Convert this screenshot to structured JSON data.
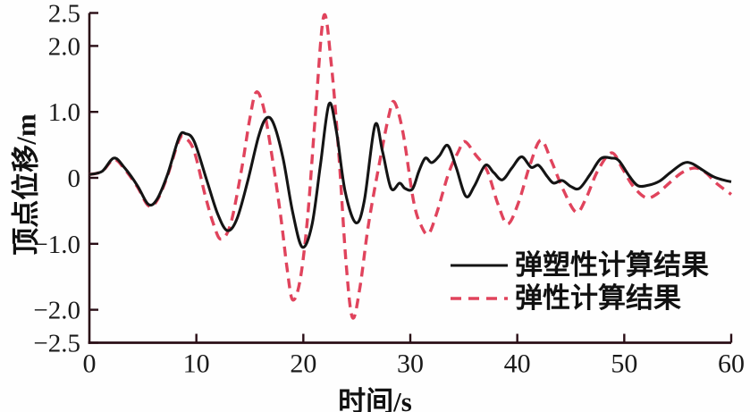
{
  "chart_data": {
    "type": "line",
    "title": "",
    "xlabel": "时间/s",
    "ylabel": "顶点位移/m",
    "xlim": [
      0,
      60
    ],
    "ylim": [
      -2.5,
      2.5
    ],
    "grid": false,
    "legend_position": "inside-bottom-right",
    "x_ticks": [
      0,
      10,
      20,
      30,
      40,
      50,
      60
    ],
    "x_tick_labels": [
      "0",
      "10",
      "20",
      "30",
      "40",
      "50",
      "60"
    ],
    "y_ticks": [
      2.5,
      2.0,
      1.0,
      0,
      -1.0,
      -2.0,
      -2.5
    ],
    "y_tick_labels": [
      "2.5",
      "2.0",
      "1.0",
      "0",
      "−1.0",
      "−2.0",
      "−2.5"
    ],
    "axis_color": "#2a0e16",
    "series": [
      {
        "name": "弹性计算结果",
        "key": "elastic",
        "style": "dashed",
        "color": "#e0435c",
        "width": 3.4,
        "points": [
          [
            0,
            0.05
          ],
          [
            1.2,
            0.1
          ],
          [
            2.3,
            0.28
          ],
          [
            3.3,
            0.13
          ],
          [
            4.5,
            -0.14
          ],
          [
            5.5,
            -0.42
          ],
          [
            6.3,
            -0.35
          ],
          [
            7.3,
            0.03
          ],
          [
            8.4,
            0.58
          ],
          [
            9.0,
            0.6
          ],
          [
            9.8,
            0.4
          ],
          [
            10.8,
            -0.25
          ],
          [
            11.6,
            -0.7
          ],
          [
            12.3,
            -0.93
          ],
          [
            13.2,
            -0.7
          ],
          [
            14.2,
            0.1
          ],
          [
            15.0,
            0.9
          ],
          [
            15.6,
            1.3
          ],
          [
            16.3,
            1.05
          ],
          [
            17.1,
            0.3
          ],
          [
            17.9,
            -0.6
          ],
          [
            18.5,
            -1.4
          ],
          [
            19.0,
            -1.85
          ],
          [
            19.7,
            -1.55
          ],
          [
            20.4,
            -0.6
          ],
          [
            21.1,
            0.9
          ],
          [
            21.9,
            2.45
          ],
          [
            22.6,
            1.75
          ],
          [
            23.3,
            0.4
          ],
          [
            24.0,
            -1.3
          ],
          [
            24.6,
            -2.12
          ],
          [
            25.3,
            -1.65
          ],
          [
            26.1,
            -0.7
          ],
          [
            27.2,
            0.3
          ],
          [
            28.0,
            0.95
          ],
          [
            28.5,
            1.15
          ],
          [
            29.3,
            0.7
          ],
          [
            30.3,
            -0.35
          ],
          [
            31.0,
            -0.72
          ],
          [
            31.7,
            -0.85
          ],
          [
            32.5,
            -0.52
          ],
          [
            33.6,
            0.08
          ],
          [
            34.5,
            0.4
          ],
          [
            35.1,
            0.55
          ],
          [
            36.1,
            0.35
          ],
          [
            37.2,
            0.1
          ],
          [
            38.2,
            -0.4
          ],
          [
            39.1,
            -0.7
          ],
          [
            40.1,
            -0.38
          ],
          [
            41.2,
            0.2
          ],
          [
            42.2,
            0.57
          ],
          [
            43.2,
            0.25
          ],
          [
            44.3,
            -0.18
          ],
          [
            45.5,
            -0.52
          ],
          [
            46.4,
            -0.32
          ],
          [
            47.5,
            0.1
          ],
          [
            48.8,
            0.38
          ],
          [
            49.8,
            0.15
          ],
          [
            50.8,
            -0.12
          ],
          [
            52.0,
            -0.3
          ],
          [
            53.0,
            -0.25
          ],
          [
            54.2,
            -0.08
          ],
          [
            55.4,
            0.08
          ],
          [
            56.6,
            0.15
          ],
          [
            57.6,
            0.08
          ],
          [
            58.6,
            -0.08
          ],
          [
            60,
            -0.25
          ]
        ]
      },
      {
        "name": "弹塑性计算结果",
        "key": "elastoplastic",
        "style": "solid",
        "color": "#141414",
        "width": 3.1,
        "points": [
          [
            0,
            0.05
          ],
          [
            1.2,
            0.1
          ],
          [
            2.3,
            0.3
          ],
          [
            3.3,
            0.15
          ],
          [
            4.5,
            -0.12
          ],
          [
            5.5,
            -0.4
          ],
          [
            6.3,
            -0.33
          ],
          [
            7.3,
            0.05
          ],
          [
            8.4,
            0.62
          ],
          [
            9.0,
            0.67
          ],
          [
            9.8,
            0.55
          ],
          [
            11.0,
            -0.05
          ],
          [
            12.0,
            -0.55
          ],
          [
            12.9,
            -0.8
          ],
          [
            13.8,
            -0.62
          ],
          [
            14.8,
            -0.05
          ],
          [
            15.8,
            0.62
          ],
          [
            16.5,
            0.9
          ],
          [
            17.2,
            0.83
          ],
          [
            18.1,
            0.3
          ],
          [
            19.0,
            -0.52
          ],
          [
            19.9,
            -1.05
          ],
          [
            20.8,
            -0.72
          ],
          [
            21.6,
            0.2
          ],
          [
            22.4,
            1.12
          ],
          [
            23.1,
            0.7
          ],
          [
            23.9,
            -0.2
          ],
          [
            24.9,
            -0.68
          ],
          [
            25.7,
            -0.35
          ],
          [
            26.7,
            0.8
          ],
          [
            27.4,
            0.4
          ],
          [
            28.2,
            -0.16
          ],
          [
            29.0,
            -0.08
          ],
          [
            29.5,
            -0.16
          ],
          [
            30.2,
            -0.17
          ],
          [
            30.8,
            0.1
          ],
          [
            31.4,
            0.3
          ],
          [
            32.0,
            0.23
          ],
          [
            32.7,
            0.33
          ],
          [
            33.5,
            0.49
          ],
          [
            34.3,
            0.15
          ],
          [
            35.2,
            -0.28
          ],
          [
            36.0,
            -0.12
          ],
          [
            37.0,
            0.19
          ],
          [
            37.8,
            0.08
          ],
          [
            38.6,
            -0.03
          ],
          [
            39.5,
            0.15
          ],
          [
            40.4,
            0.32
          ],
          [
            41.3,
            0.16
          ],
          [
            42.0,
            0.19
          ],
          [
            42.8,
            0.02
          ],
          [
            43.4,
            -0.08
          ],
          [
            44.2,
            -0.04
          ],
          [
            45.0,
            -0.13
          ],
          [
            45.8,
            -0.16
          ],
          [
            46.8,
            0.05
          ],
          [
            47.8,
            0.29
          ],
          [
            48.8,
            0.3
          ],
          [
            49.5,
            0.26
          ],
          [
            50.5,
            0.02
          ],
          [
            51.3,
            -0.12
          ],
          [
            52.3,
            -0.11
          ],
          [
            53.3,
            -0.05
          ],
          [
            54.3,
            0.08
          ],
          [
            55.5,
            0.22
          ],
          [
            56.3,
            0.22
          ],
          [
            57.3,
            0.12
          ],
          [
            58.3,
            0.02
          ],
          [
            59.2,
            -0.03
          ],
          [
            60,
            -0.06
          ]
        ]
      }
    ]
  }
}
